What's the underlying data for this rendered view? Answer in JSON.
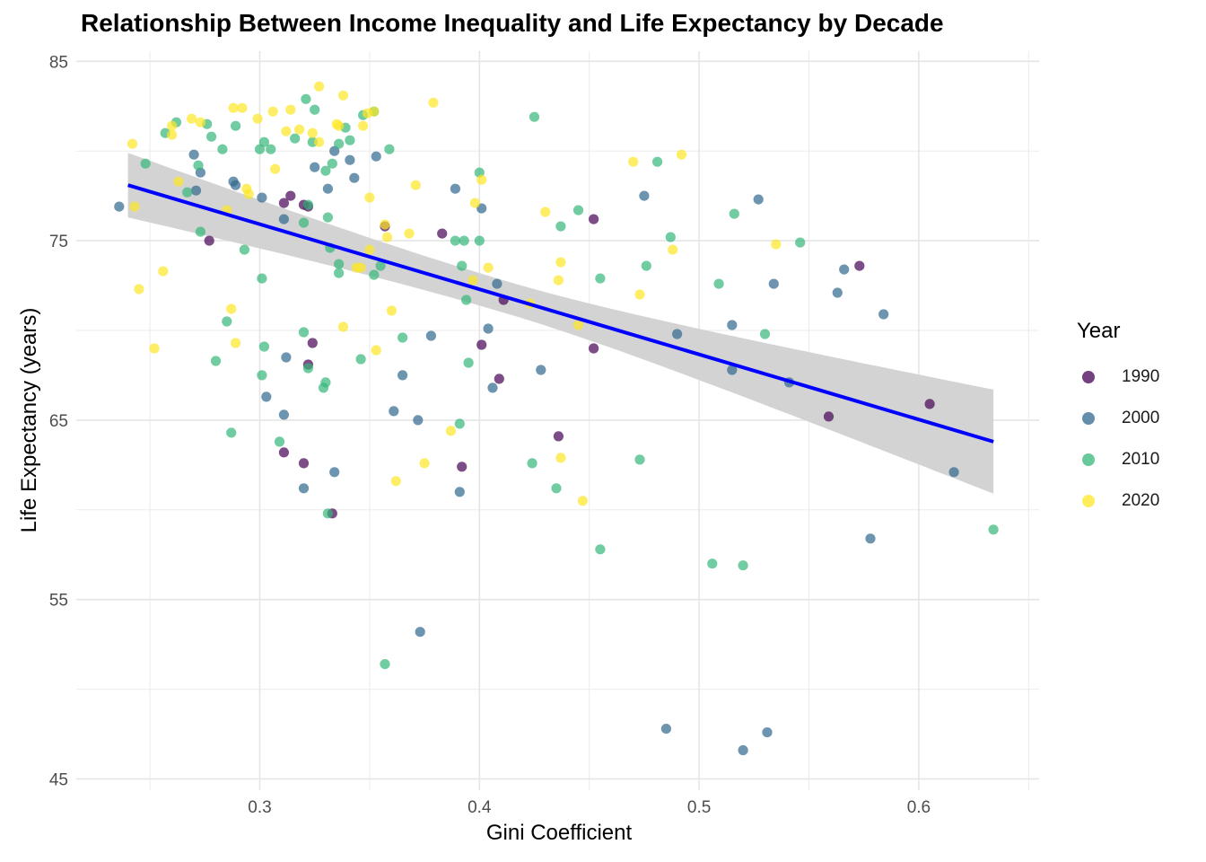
{
  "chart_data": {
    "type": "scatter",
    "title": "Relationship Between Income Inequality and Life Expectancy by Decade",
    "xlabel": "Gini Coefficient",
    "ylabel": "Life Expectancy (years)",
    "xlim": [
      0.22,
      0.655
    ],
    "ylim": [
      44,
      85.5
    ],
    "x_ticks": [
      0.3,
      0.4,
      0.5,
      0.6
    ],
    "x_tick_labels": [
      "0.3",
      "0.4",
      "0.5",
      "0.6"
    ],
    "y_ticks": [
      45,
      55,
      65,
      75,
      85
    ],
    "y_tick_labels": [
      "45",
      "55",
      "65",
      "75",
      "85"
    ],
    "grid": true,
    "legend": {
      "title": "Year",
      "placement": "right"
    },
    "series": [
      {
        "name": "1990",
        "color": "#440154",
        "points": [
          [
            0.277,
            75.0
          ],
          [
            0.311,
            77.1
          ],
          [
            0.314,
            77.5
          ],
          [
            0.32,
            77.0
          ],
          [
            0.322,
            76.9
          ],
          [
            0.357,
            75.8
          ],
          [
            0.383,
            75.4
          ],
          [
            0.411,
            71.7
          ],
          [
            0.409,
            67.3
          ],
          [
            0.401,
            69.2
          ],
          [
            0.392,
            62.4
          ],
          [
            0.324,
            69.3
          ],
          [
            0.322,
            68.1
          ],
          [
            0.32,
            62.6
          ],
          [
            0.311,
            63.2
          ],
          [
            0.333,
            59.8
          ],
          [
            0.436,
            64.1
          ],
          [
            0.452,
            76.2
          ],
          [
            0.452,
            69.0
          ],
          [
            0.559,
            65.2
          ],
          [
            0.573,
            73.6
          ],
          [
            0.605,
            65.9
          ]
        ]
      },
      {
        "name": "2000",
        "color": "#31688E",
        "points": [
          [
            0.236,
            76.9
          ],
          [
            0.27,
            79.8
          ],
          [
            0.273,
            78.8
          ],
          [
            0.271,
            77.8
          ],
          [
            0.288,
            78.3
          ],
          [
            0.289,
            78.1
          ],
          [
            0.301,
            77.4
          ],
          [
            0.311,
            76.2
          ],
          [
            0.325,
            79.1
          ],
          [
            0.331,
            77.9
          ],
          [
            0.334,
            80.0
          ],
          [
            0.341,
            79.5
          ],
          [
            0.343,
            78.5
          ],
          [
            0.353,
            79.7
          ],
          [
            0.389,
            77.9
          ],
          [
            0.401,
            76.8
          ],
          [
            0.408,
            72.6
          ],
          [
            0.404,
            70.1
          ],
          [
            0.406,
            66.8
          ],
          [
            0.378,
            69.7
          ],
          [
            0.365,
            67.5
          ],
          [
            0.361,
            65.5
          ],
          [
            0.372,
            65.0
          ],
          [
            0.391,
            61.0
          ],
          [
            0.334,
            62.1
          ],
          [
            0.32,
            61.2
          ],
          [
            0.311,
            65.3
          ],
          [
            0.303,
            66.3
          ],
          [
            0.312,
            68.5
          ],
          [
            0.373,
            53.2
          ],
          [
            0.428,
            67.8
          ],
          [
            0.475,
            77.5
          ],
          [
            0.49,
            69.8
          ],
          [
            0.515,
            70.3
          ],
          [
            0.515,
            67.8
          ],
          [
            0.527,
            77.3
          ],
          [
            0.534,
            72.6
          ],
          [
            0.541,
            67.1
          ],
          [
            0.563,
            72.1
          ],
          [
            0.566,
            73.4
          ],
          [
            0.584,
            70.9
          ],
          [
            0.578,
            58.4
          ],
          [
            0.616,
            62.1
          ],
          [
            0.485,
            47.8
          ],
          [
            0.52,
            46.6
          ],
          [
            0.531,
            47.6
          ]
        ]
      },
      {
        "name": "2010",
        "color": "#35B779",
        "points": [
          [
            0.248,
            79.3
          ],
          [
            0.257,
            81.0
          ],
          [
            0.262,
            81.6
          ],
          [
            0.267,
            77.7
          ],
          [
            0.272,
            79.2
          ],
          [
            0.276,
            81.5
          ],
          [
            0.278,
            80.8
          ],
          [
            0.283,
            80.1
          ],
          [
            0.289,
            81.4
          ],
          [
            0.3,
            80.1
          ],
          [
            0.302,
            80.5
          ],
          [
            0.305,
            80.1
          ],
          [
            0.316,
            80.7
          ],
          [
            0.321,
            82.9
          ],
          [
            0.324,
            80.5
          ],
          [
            0.325,
            82.3
          ],
          [
            0.33,
            78.9
          ],
          [
            0.333,
            79.3
          ],
          [
            0.336,
            80.4
          ],
          [
            0.339,
            81.3
          ],
          [
            0.341,
            80.6
          ],
          [
            0.347,
            82.0
          ],
          [
            0.352,
            82.2
          ],
          [
            0.359,
            80.1
          ],
          [
            0.273,
            75.5
          ],
          [
            0.293,
            74.5
          ],
          [
            0.301,
            72.9
          ],
          [
            0.285,
            70.5
          ],
          [
            0.28,
            68.3
          ],
          [
            0.302,
            69.1
          ],
          [
            0.301,
            67.5
          ],
          [
            0.287,
            64.3
          ],
          [
            0.309,
            63.8
          ],
          [
            0.322,
            77.0
          ],
          [
            0.32,
            76.0
          ],
          [
            0.331,
            76.3
          ],
          [
            0.332,
            74.6
          ],
          [
            0.336,
            73.7
          ],
          [
            0.336,
            73.2
          ],
          [
            0.352,
            73.1
          ],
          [
            0.355,
            73.6
          ],
          [
            0.32,
            69.9
          ],
          [
            0.322,
            67.9
          ],
          [
            0.329,
            66.8
          ],
          [
            0.33,
            67.1
          ],
          [
            0.331,
            59.8
          ],
          [
            0.346,
            68.4
          ],
          [
            0.365,
            69.6
          ],
          [
            0.357,
            51.4
          ],
          [
            0.389,
            75.0
          ],
          [
            0.392,
            73.6
          ],
          [
            0.393,
            75.0
          ],
          [
            0.394,
            71.7
          ],
          [
            0.395,
            68.2
          ],
          [
            0.391,
            64.8
          ],
          [
            0.4,
            75.0
          ],
          [
            0.4,
            78.8
          ],
          [
            0.425,
            81.9
          ],
          [
            0.437,
            75.8
          ],
          [
            0.445,
            76.7
          ],
          [
            0.455,
            72.9
          ],
          [
            0.435,
            61.2
          ],
          [
            0.424,
            62.6
          ],
          [
            0.455,
            57.8
          ],
          [
            0.473,
            62.8
          ],
          [
            0.476,
            73.6
          ],
          [
            0.481,
            79.4
          ],
          [
            0.487,
            75.2
          ],
          [
            0.506,
            57.0
          ],
          [
            0.509,
            72.6
          ],
          [
            0.516,
            76.5
          ],
          [
            0.52,
            56.9
          ],
          [
            0.53,
            69.8
          ],
          [
            0.546,
            74.9
          ],
          [
            0.634,
            58.9
          ]
        ]
      },
      {
        "name": "2020",
        "color": "#FDE725",
        "points": [
          [
            0.242,
            80.4
          ],
          [
            0.243,
            76.9
          ],
          [
            0.245,
            72.3
          ],
          [
            0.252,
            69.0
          ],
          [
            0.256,
            73.3
          ],
          [
            0.26,
            81.4
          ],
          [
            0.26,
            80.9
          ],
          [
            0.263,
            78.3
          ],
          [
            0.269,
            81.8
          ],
          [
            0.273,
            81.6
          ],
          [
            0.285,
            76.7
          ],
          [
            0.287,
            71.2
          ],
          [
            0.288,
            82.4
          ],
          [
            0.289,
            69.3
          ],
          [
            0.292,
            82.4
          ],
          [
            0.294,
            77.9
          ],
          [
            0.295,
            77.6
          ],
          [
            0.299,
            81.8
          ],
          [
            0.306,
            82.2
          ],
          [
            0.307,
            79.0
          ],
          [
            0.312,
            81.1
          ],
          [
            0.314,
            82.3
          ],
          [
            0.318,
            81.2
          ],
          [
            0.324,
            81.0
          ],
          [
            0.327,
            80.5
          ],
          [
            0.327,
            83.6
          ],
          [
            0.335,
            81.5
          ],
          [
            0.336,
            81.4
          ],
          [
            0.338,
            83.1
          ],
          [
            0.338,
            70.2
          ],
          [
            0.344,
            73.5
          ],
          [
            0.346,
            73.5
          ],
          [
            0.347,
            81.4
          ],
          [
            0.349,
            82.1
          ],
          [
            0.35,
            74.5
          ],
          [
            0.35,
            77.4
          ],
          [
            0.352,
            82.2
          ],
          [
            0.353,
            68.9
          ],
          [
            0.357,
            75.9
          ],
          [
            0.358,
            75.2
          ],
          [
            0.36,
            71.1
          ],
          [
            0.362,
            61.6
          ],
          [
            0.368,
            75.4
          ],
          [
            0.371,
            78.1
          ],
          [
            0.375,
            62.6
          ],
          [
            0.379,
            82.7
          ],
          [
            0.387,
            64.4
          ],
          [
            0.397,
            72.8
          ],
          [
            0.398,
            77.1
          ],
          [
            0.401,
            78.4
          ],
          [
            0.404,
            73.5
          ],
          [
            0.423,
            71.5
          ],
          [
            0.43,
            76.6
          ],
          [
            0.436,
            72.8
          ],
          [
            0.437,
            73.8
          ],
          [
            0.437,
            62.9
          ],
          [
            0.445,
            70.3
          ],
          [
            0.447,
            60.5
          ],
          [
            0.47,
            79.4
          ],
          [
            0.473,
            72.0
          ],
          [
            0.488,
            74.5
          ],
          [
            0.492,
            79.8
          ],
          [
            0.535,
            74.8
          ]
        ]
      }
    ],
    "trendline": {
      "method": "linear",
      "x_range": [
        0.24,
        0.634
      ],
      "y_at_range": [
        78.1,
        63.8
      ],
      "color": "#0000FF",
      "ci_band_color": "#D3D3D3",
      "ci_halfwidth_at_range": [
        1.8,
        2.9
      ],
      "ci_halfwidth_min": 0.9,
      "ci_min_at_x": 0.41
    }
  }
}
